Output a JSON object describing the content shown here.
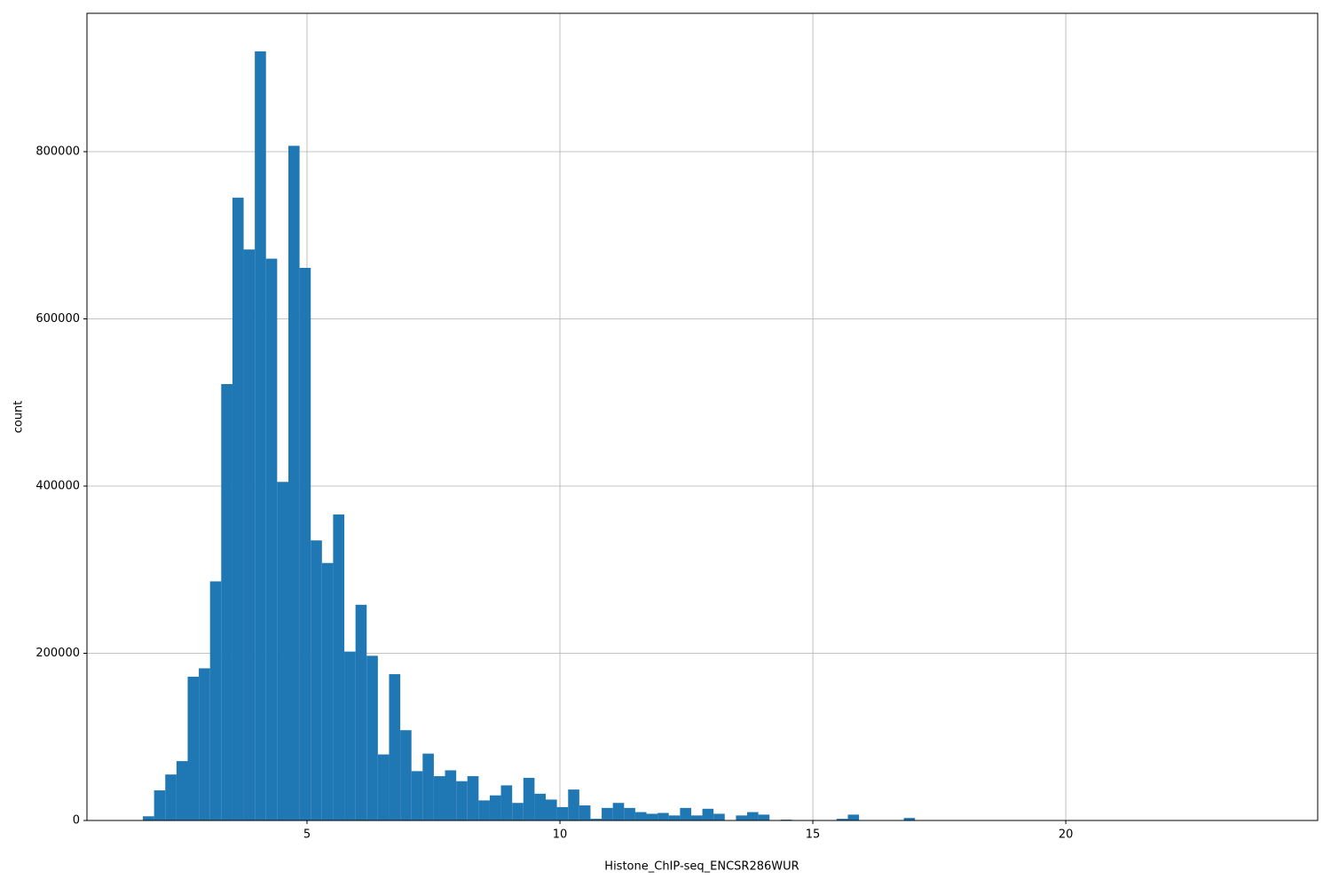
{
  "chart_data": {
    "type": "histogram",
    "x_label": "Histone_ChIP-seq_ENCSR286WUR",
    "y_label": "count",
    "color": "#1f77b4",
    "grid": true,
    "bins": [
      1.756,
      1.977,
      2.198,
      2.42,
      2.641,
      2.862,
      3.083,
      3.304,
      3.526,
      3.747,
      3.968,
      4.189,
      4.41,
      4.632,
      4.853,
      5.074,
      5.295,
      5.516,
      5.738,
      5.959,
      6.18,
      6.401,
      6.622,
      6.844,
      7.065,
      7.286,
      7.507,
      7.728,
      7.95,
      8.171,
      8.392,
      8.613,
      8.834,
      9.056,
      9.277,
      9.498,
      9.719,
      9.94,
      10.162,
      10.383,
      10.604,
      10.825,
      11.046,
      11.268,
      11.489,
      11.71,
      11.931,
      12.152,
      12.374,
      12.595,
      12.816,
      13.037,
      13.258,
      13.48,
      13.701,
      13.922,
      14.143,
      14.364,
      14.586,
      14.807,
      15.028,
      15.249,
      15.47,
      15.692,
      15.913,
      16.134,
      16.355,
      16.576,
      16.798,
      17.019,
      17.24,
      17.461,
      17.682,
      17.904,
      18.125,
      18.346,
      18.567,
      18.788,
      19.01,
      19.231,
      19.452,
      19.673,
      19.894,
      20.116,
      20.337,
      20.558,
      20.779,
      21.0,
      21.222,
      21.443,
      21.664,
      21.885,
      22.106,
      22.328,
      22.549,
      22.77,
      22.991,
      23.212,
      23.434,
      23.655,
      23.876
    ],
    "counts": [
      5000,
      36000,
      55000,
      71000,
      172000,
      182000,
      286000,
      522000,
      745000,
      683000,
      920000,
      672000,
      405000,
      807000,
      661000,
      335000,
      308000,
      366000,
      202000,
      258000,
      197000,
      79000,
      175000,
      108000,
      59000,
      80000,
      53000,
      60000,
      47000,
      53000,
      24000,
      30000,
      42000,
      21000,
      51000,
      32000,
      25000,
      16000,
      37000,
      18000,
      2000,
      15000,
      21000,
      15000,
      10000,
      8000,
      9000,
      6000,
      15000,
      6000,
      14000,
      8000,
      0,
      6000,
      10000,
      7000,
      0,
      1000,
      0,
      0,
      0,
      0,
      2000,
      7000,
      0,
      0,
      0,
      0,
      3000,
      0,
      0,
      0,
      0,
      0,
      0,
      0,
      0,
      0,
      0,
      0,
      0,
      0,
      0,
      0,
      0,
      0,
      0,
      0,
      0,
      0,
      0,
      0,
      0,
      0,
      0,
      0,
      0,
      0,
      0,
      0
    ],
    "xlim": [
      0.65,
      24.98
    ],
    "ylim": [
      0,
      965500
    ],
    "xticks": [
      5,
      10,
      15,
      20
    ],
    "yticks": [
      0,
      200000,
      400000,
      600000,
      800000
    ]
  }
}
